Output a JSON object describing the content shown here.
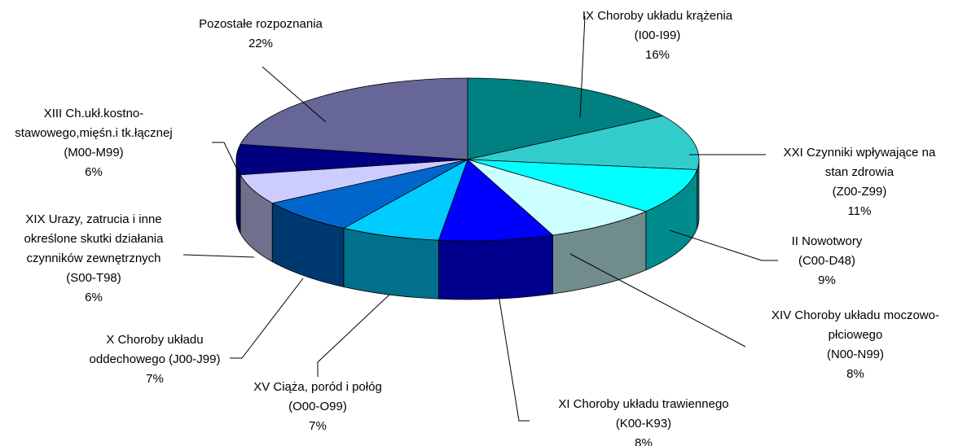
{
  "chart_data": {
    "type": "pie3d",
    "categories": [
      [
        "IX Choroby układu krążenia",
        "(I00-I99)"
      ],
      [
        "XXI Czynniki wpływające na",
        "stan zdrowia",
        "(Z00-Z99)"
      ],
      [
        "II Nowotwory",
        "(C00-D48)"
      ],
      [
        "XIV Choroby układu moczowo-",
        "płciowego",
        "(N00-N99)"
      ],
      [
        "XI Choroby układu trawiennego",
        "(K00-K93)"
      ],
      [
        "XV Ciąża, poród i połóg",
        "(O00-O99)"
      ],
      [
        "X Choroby układu",
        "oddechowego (J00-J99)"
      ],
      [
        "XIX Urazy, zatrucia i inne",
        "określone skutki działania",
        "czynników zewnętrznych",
        "(S00-T98)"
      ],
      [
        "XIII Ch.ukł.kostno-",
        "stawowego,mięśn.i tk.łącznej",
        "(M00-M99)"
      ],
      [
        "Pozostałe rozpoznania"
      ]
    ],
    "values": [
      16,
      11,
      9,
      8,
      8,
      7,
      7,
      6,
      6,
      22
    ],
    "value_labels": [
      "16%",
      "11%",
      "9%",
      "8%",
      "8%",
      "7%",
      "7%",
      "6%",
      "6%",
      "22%"
    ],
    "colors": [
      "#008080",
      "#33CCCC",
      "#00FFFF",
      "#CCFFFF",
      "#0000FF",
      "#00CCFF",
      "#0066CC",
      "#CCCCFF",
      "#000080",
      "#666699"
    ]
  }
}
